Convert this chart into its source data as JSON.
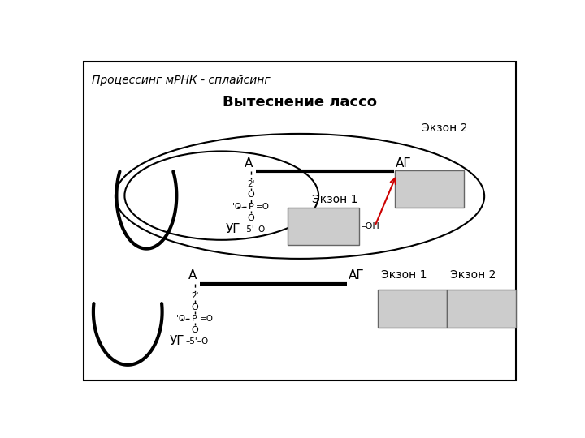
{
  "title": "Процессинг мРНК - сплайсинг",
  "subtitle": "Вытеснение лассо",
  "label_A": "А",
  "label_AG": "АГ",
  "label_UG": "УГ",
  "label_exon1": "Экзон 1",
  "label_exon2": "Экзон 2",
  "label_OH": "–OH",
  "label_5prime": "–5'–O",
  "label_2prime": "2'",
  "label_O": "O",
  "label_P": "P",
  "label_Ominus": "'O–",
  "label_eqO": "=O",
  "bg_color": "#ffffff",
  "border_color": "#000000",
  "exon_fill": "#cccccc",
  "exon_edge": "#666666",
  "line_color": "#000000",
  "arrow_color": "#cc0000",
  "lasso_lw": 3.0,
  "thin_lw": 1.0,
  "ellipse_lw": 1.5
}
